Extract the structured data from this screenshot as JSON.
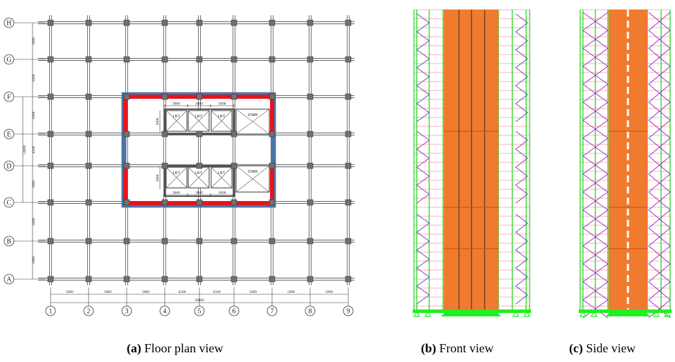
{
  "floor_plan": {
    "row_labels": [
      "H",
      "G",
      "F",
      "E",
      "D",
      "C",
      "B",
      "A"
    ],
    "column_labels": [
      "1",
      "2",
      "3",
      "4",
      "5",
      "6",
      "7",
      "8",
      "9"
    ],
    "row_spacing_labels": [
      "5000",
      "5000",
      "5000",
      "4500",
      "5000",
      "5000",
      "5000"
    ],
    "row_span_label": "14000",
    "column_spacing_labels": [
      "5000",
      "5000",
      "5000",
      "4500",
      "4500",
      "5000",
      "5000",
      "5000"
    ],
    "total_span_label": "39000",
    "core": {
      "top_dims": [
        "3000",
        "3000",
        "3000"
      ],
      "bottom_dims": [
        "3000",
        "3000",
        "3000"
      ],
      "top_height": "3000",
      "bottom_height": "3000",
      "lift_label": "LIFT",
      "stair_label": "STAIR"
    }
  },
  "captions": {
    "a": {
      "letter": "(a)",
      "text": "Floor plan view"
    },
    "b": {
      "letter": "(b)",
      "text": "Front view"
    },
    "c": {
      "letter": "(c)",
      "text": "Side view"
    }
  },
  "colors": {
    "grid": "#606060",
    "column_node": "#707070",
    "shear_wall": "#e8141c",
    "coupling_beam": "#4a74a6",
    "core_wall": "#f07a2e",
    "brace": "#9a28c8",
    "brace_upper": "#5a44b8",
    "beam": "#ff9a8c",
    "column": "#30d830",
    "base": "#22ee22"
  }
}
